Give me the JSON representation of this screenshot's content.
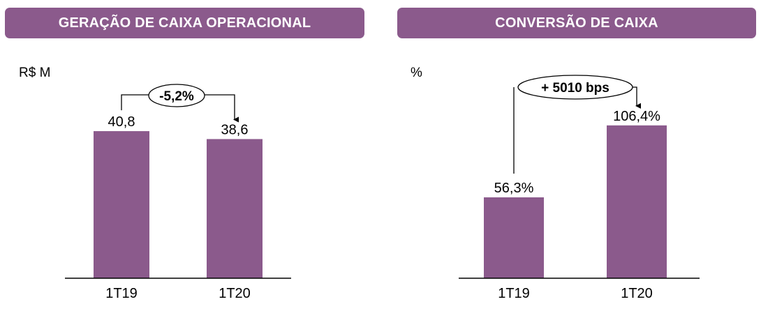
{
  "colors": {
    "accent": "#8b5a8c",
    "bar": "#8b5a8c",
    "axis": "#000000"
  },
  "panels": {
    "left": {
      "header": "GERAÇÃO DE CAIXA OPERACIONAL",
      "unit": "R$ M",
      "delta": "-5,2%"
    },
    "right": {
      "header": "CONVERSÃO DE CAIXA",
      "unit": "%",
      "delta": "+ 5010 bps"
    }
  },
  "chart_data": [
    {
      "type": "bar",
      "title": "GERAÇÃO DE CAIXA OPERACIONAL",
      "ylabel": "R$ M",
      "categories": [
        "1T19",
        "1T20"
      ],
      "values": [
        40.8,
        38.6
      ],
      "value_labels": [
        "40,8",
        "38,6"
      ],
      "annotation": "-5,2%",
      "legend": "none",
      "grid": false
    },
    {
      "type": "bar",
      "title": "CONVERSÃO DE CAIXA",
      "ylabel": "%",
      "categories": [
        "1T19",
        "1T20"
      ],
      "values": [
        56.3,
        106.4
      ],
      "value_labels": [
        "56,3%",
        "106,4%"
      ],
      "annotation": "+ 5010 bps",
      "legend": "none",
      "grid": false
    }
  ]
}
